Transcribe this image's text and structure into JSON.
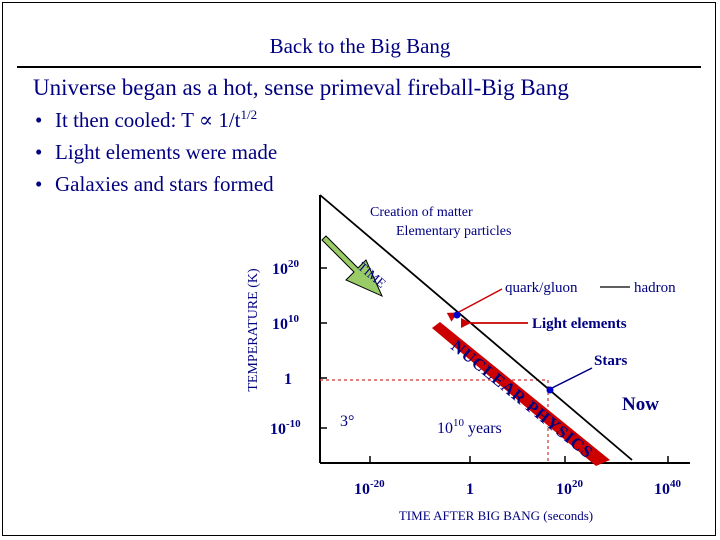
{
  "slide": {
    "title": "Back to the Big Bang",
    "headline": "Universe began as a hot, sense primeval fireball-Big Bang",
    "bullets": [
      {
        "marker": "•",
        "text": "It then cooled: T ∝ 1/t",
        "sup": "1/2"
      },
      {
        "marker": "•",
        "text": "Light elements were made",
        "sup": ""
      },
      {
        "marker": "•",
        "text": "Galaxies and stars formed",
        "sup": ""
      }
    ]
  },
  "diagram": {
    "y_axis_label": "TEMPERATURE (K)",
    "x_axis_label": "TIME AFTER BIG BANG (seconds)",
    "y_ticks": [
      {
        "base": "10",
        "exp": "20"
      },
      {
        "base": "10",
        "exp": "10"
      },
      {
        "base": "1",
        "exp": ""
      },
      {
        "base": "10",
        "exp": "-10"
      }
    ],
    "x_ticks": [
      {
        "base": "10",
        "exp": "-20"
      },
      {
        "base": "1",
        "exp": ""
      },
      {
        "base": "10",
        "exp": "20"
      },
      {
        "base": "10",
        "exp": "40"
      }
    ],
    "creation_line1": "Creation of matter",
    "creation_line2": "Elementary particles",
    "time_arrow_label": "TIME",
    "nuclear_physics_label": "NUCLEAR PHYSICS",
    "quark_gluon": "quark/gluon",
    "hadron": "hadron",
    "light_elements": "Light elements",
    "stars": "Stars",
    "now": "Now",
    "three_degrees": "3°",
    "years_base": "10",
    "years_exp": "10",
    "years_unit": " years",
    "colors": {
      "navy": "#000080",
      "red": "#cc0000",
      "time_arrow": "#99cc66",
      "dashed_red": "#cc3333",
      "marker_blue": "#0000cc"
    }
  }
}
